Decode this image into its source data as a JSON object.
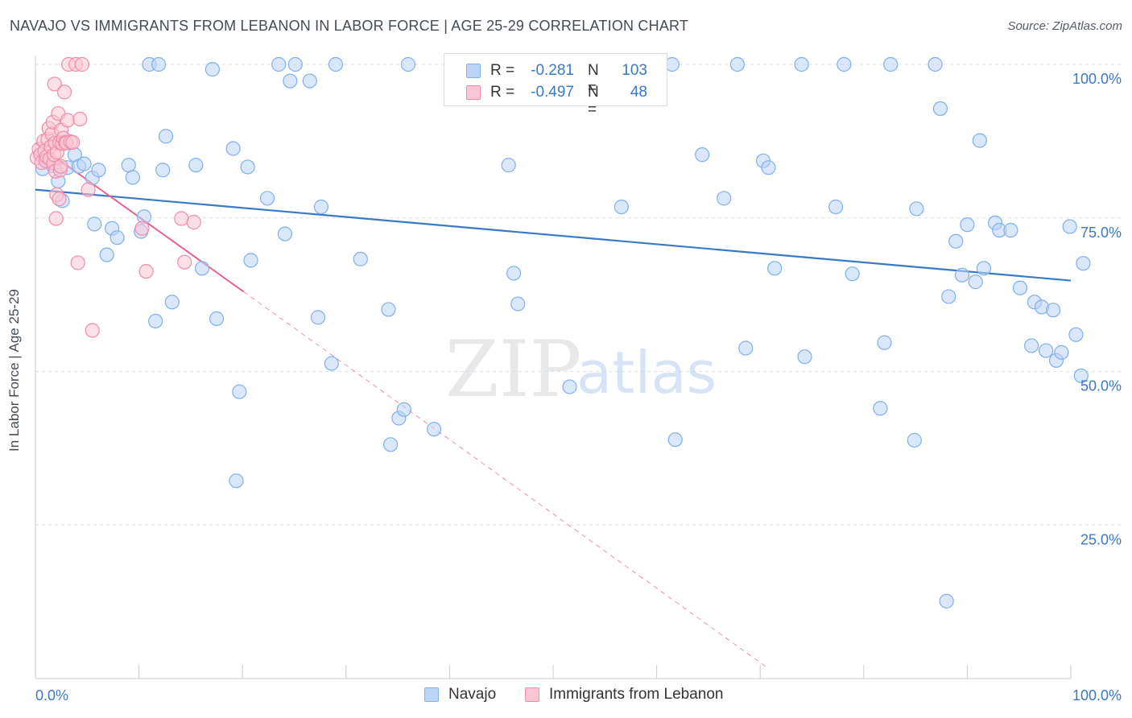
{
  "title": "NAVAJO VS IMMIGRANTS FROM LEBANON IN LABOR FORCE | AGE 25-29 CORRELATION CHART",
  "source": "Source: ZipAtlas.com",
  "watermark": {
    "zip": "ZIP",
    "atlas": "atlas"
  },
  "legend": {
    "rows": [
      {
        "r_label": "R =",
        "r_value": "-0.281",
        "n_label": "N =",
        "n_value": "103",
        "color": "#7fb0ea",
        "fill": "#bcd4f5"
      },
      {
        "r_label": "R =",
        "r_value": "-0.497",
        "n_label": "N =",
        "n_value": "48",
        "color": "#f08caa",
        "fill": "#f9c6d5"
      }
    ]
  },
  "bottom_legend": [
    {
      "label": "Navajo",
      "color": "#7fb0ea",
      "fill": "#bcd4f5"
    },
    {
      "label": "Immigrants from Lebanon",
      "color": "#f08caa",
      "fill": "#f9c6d5"
    }
  ],
  "chart_data": {
    "type": "scatter",
    "title": "NAVAJO VS IMMIGRANTS FROM LEBANON IN LABOR FORCE | AGE 25-29 CORRELATION CHART",
    "xlabel": "",
    "ylabel": "In Labor Force | Age 25-29",
    "xlim": [
      0,
      100
    ],
    "ylim": [
      0,
      103
    ],
    "x_tick_labels": [
      "0.0%",
      "100.0%"
    ],
    "y_tick_values": [
      25,
      50,
      75,
      100
    ],
    "y_tick_labels": [
      "25.0%",
      "50.0%",
      "75.0%",
      "100.0%"
    ],
    "grid": "horizontal dashed",
    "series": [
      {
        "name": "Navajo",
        "color": "#3a78c8",
        "marker_fill": "#bcd4f5",
        "marker_stroke": "#7fb0ea",
        "trend": {
          "x": [
            0,
            100
          ],
          "y": [
            79.6,
            64.8
          ],
          "style": "solid"
        },
        "points": [
          [
            0.7,
            83
          ],
          [
            1.2,
            84.5
          ],
          [
            1.7,
            83.5
          ],
          [
            2.2,
            81
          ],
          [
            2.6,
            77.8
          ],
          [
            3.1,
            83.2
          ],
          [
            3.8,
            85.3
          ],
          [
            4.2,
            83.4
          ],
          [
            4.7,
            83.8
          ],
          [
            5.5,
            81.5
          ],
          [
            6.1,
            82.8
          ],
          [
            5.7,
            74
          ],
          [
            6.9,
            69
          ],
          [
            7.4,
            73.3
          ],
          [
            7.9,
            71.8
          ],
          [
            9.0,
            83.6
          ],
          [
            9.4,
            81.6
          ],
          [
            10.2,
            72.8
          ],
          [
            10.5,
            75.2
          ],
          [
            11.0,
            100
          ],
          [
            11.6,
            58.2
          ],
          [
            11.9,
            100
          ],
          [
            12.3,
            82.8
          ],
          [
            12.6,
            88.3
          ],
          [
            13.2,
            61.3
          ],
          [
            15.5,
            83.6
          ],
          [
            16.1,
            66.8
          ],
          [
            17.1,
            99.2
          ],
          [
            17.5,
            58.6
          ],
          [
            19.1,
            86.3
          ],
          [
            19.4,
            32.2
          ],
          [
            19.7,
            46.7
          ],
          [
            20.5,
            83.3
          ],
          [
            20.8,
            68.1
          ],
          [
            22.4,
            78.2
          ],
          [
            23.5,
            100
          ],
          [
            24.1,
            72.4
          ],
          [
            24.6,
            97.3
          ],
          [
            25.1,
            100
          ],
          [
            26.5,
            97.3
          ],
          [
            27.3,
            58.8
          ],
          [
            27.6,
            76.8
          ],
          [
            28.6,
            51.3
          ],
          [
            29.0,
            100
          ],
          [
            31.4,
            68.3
          ],
          [
            34.1,
            60.1
          ],
          [
            34.3,
            38.1
          ],
          [
            35.1,
            42.4
          ],
          [
            35.6,
            43.8
          ],
          [
            36.0,
            100
          ],
          [
            38.5,
            40.6
          ],
          [
            41.1,
            100
          ],
          [
            45.7,
            83.6
          ],
          [
            46.2,
            66
          ],
          [
            46.6,
            61
          ],
          [
            51.6,
            47.5
          ],
          [
            53.5,
            100
          ],
          [
            56.6,
            76.8
          ],
          [
            58.6,
            100
          ],
          [
            61.5,
            100
          ],
          [
            61.8,
            38.9
          ],
          [
            64.4,
            85.3
          ],
          [
            66.5,
            78.2
          ],
          [
            67.8,
            100
          ],
          [
            68.6,
            53.8
          ],
          [
            70.3,
            84.3
          ],
          [
            70.8,
            83.2
          ],
          [
            71.4,
            66.8
          ],
          [
            74.0,
            100
          ],
          [
            74.3,
            52.4
          ],
          [
            77.3,
            76.8
          ],
          [
            78.1,
            100
          ],
          [
            78.9,
            65.9
          ],
          [
            81.6,
            44
          ],
          [
            82.0,
            54.7
          ],
          [
            82.6,
            100
          ],
          [
            84.9,
            38.8
          ],
          [
            85.1,
            76.5
          ],
          [
            86.9,
            100
          ],
          [
            87.4,
            92.8
          ],
          [
            88.0,
            12.6
          ],
          [
            88.2,
            62.2
          ],
          [
            88.9,
            71.2
          ],
          [
            89.5,
            65.7
          ],
          [
            90.0,
            73.9
          ],
          [
            90.8,
            64.6
          ],
          [
            91.2,
            87.6
          ],
          [
            91.6,
            66.8
          ],
          [
            92.7,
            74.2
          ],
          [
            93.1,
            73
          ],
          [
            94.2,
            73
          ],
          [
            95.1,
            63.6
          ],
          [
            96.2,
            54.2
          ],
          [
            96.5,
            61.3
          ],
          [
            97.2,
            60.5
          ],
          [
            97.6,
            53.4
          ],
          [
            98.3,
            60
          ],
          [
            98.6,
            51.8
          ],
          [
            99.1,
            53.1
          ],
          [
            99.9,
            73.6
          ],
          [
            100.5,
            56
          ],
          [
            101.0,
            49.3
          ],
          [
            101.2,
            67.6
          ]
        ]
      },
      {
        "name": "Immigrants from Lebanon",
        "color": "#e8628c",
        "marker_fill": "#f9c6d5",
        "marker_stroke": "#f08caa",
        "trend": {
          "x": [
            0,
            20.1,
            70.5
          ],
          "y": [
            87.2,
            63.0,
            2.0
          ],
          "style": "solid-then-dashed",
          "solid_until": 20.1
        },
        "points": [
          [
            0.15,
            84.8
          ],
          [
            0.35,
            86.2
          ],
          [
            0.5,
            85.3
          ],
          [
            0.6,
            84
          ],
          [
            0.8,
            87.5
          ],
          [
            0.9,
            85.9
          ],
          [
            1.0,
            84.3
          ],
          [
            1.1,
            85
          ],
          [
            1.2,
            87.8
          ],
          [
            1.3,
            89.6
          ],
          [
            1.4,
            84.6
          ],
          [
            1.5,
            86.6
          ],
          [
            1.6,
            88.7
          ],
          [
            1.7,
            90.6
          ],
          [
            1.75,
            83.9
          ],
          [
            1.8,
            85.3
          ],
          [
            1.85,
            96.8
          ],
          [
            1.9,
            87.2
          ],
          [
            1.95,
            82.6
          ],
          [
            2.0,
            74.9
          ],
          [
            2.05,
            78.8
          ],
          [
            2.1,
            85.7
          ],
          [
            2.2,
            92
          ],
          [
            2.3,
            78.1
          ],
          [
            2.35,
            87.3
          ],
          [
            2.4,
            82.8
          ],
          [
            2.45,
            83.4
          ],
          [
            2.5,
            89.3
          ],
          [
            2.6,
            87.1
          ],
          [
            2.7,
            88
          ],
          [
            2.8,
            95.5
          ],
          [
            2.9,
            87.3
          ],
          [
            3.0,
            87.2
          ],
          [
            3.1,
            90.9
          ],
          [
            3.2,
            100
          ],
          [
            3.4,
            87.4
          ],
          [
            3.6,
            87.3
          ],
          [
            3.9,
            100
          ],
          [
            4.1,
            67.7
          ],
          [
            4.3,
            91.1
          ],
          [
            4.5,
            100
          ],
          [
            5.1,
            79.6
          ],
          [
            5.5,
            56.7
          ],
          [
            10.3,
            73.3
          ],
          [
            10.7,
            66.3
          ],
          [
            14.1,
            74.9
          ],
          [
            14.4,
            67.8
          ],
          [
            15.3,
            74.3
          ]
        ]
      }
    ]
  }
}
